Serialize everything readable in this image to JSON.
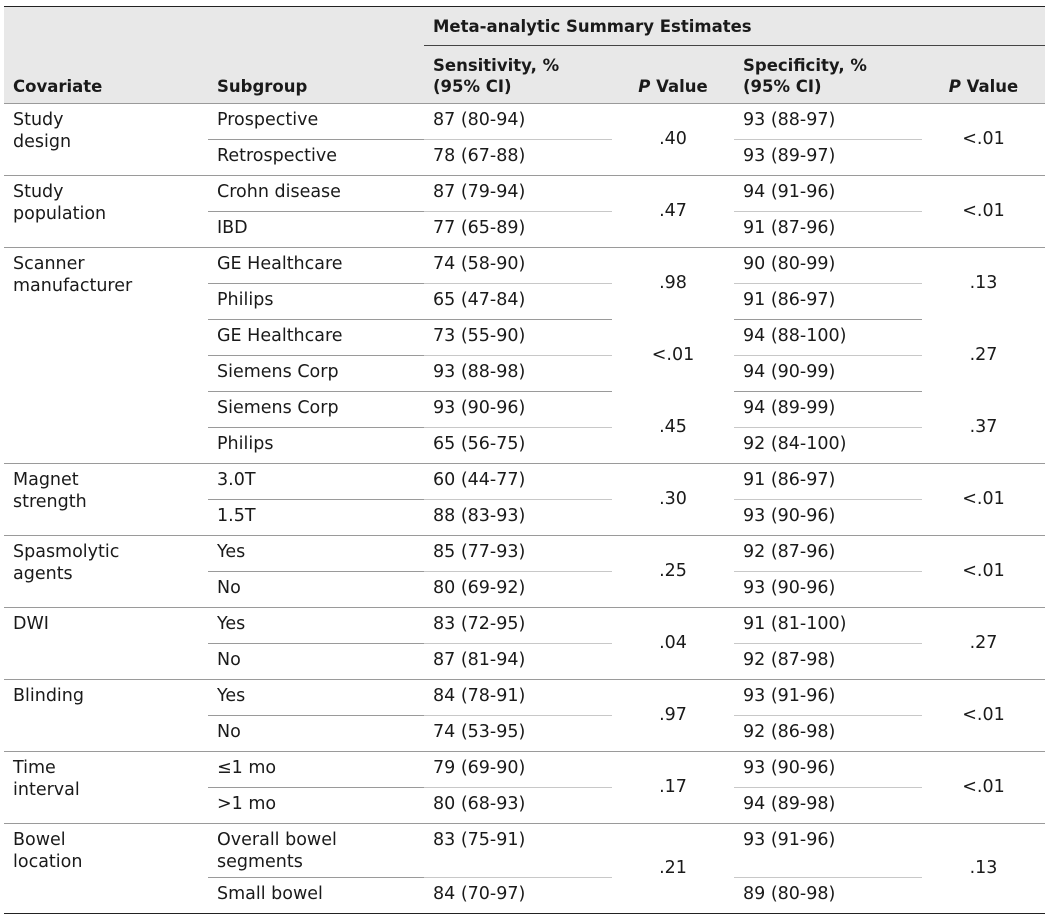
{
  "header": {
    "superheader": "Meta-analytic Summary Estimates",
    "col_covariate": "Covariate",
    "col_subgroup": "Subgroup",
    "col_sens": "Sensitivity, %",
    "col_sens_ci": "(95% CI)",
    "col_spec": "Specificity, %",
    "col_spec_ci": "(95% CI)",
    "p_italic": "P",
    "p_rest": " Value"
  },
  "groups": [
    {
      "covariate": "Study design",
      "pairs": [
        {
          "rows": [
            {
              "subgroup": "Prospective",
              "sens": "87 (80-94)",
              "spec": "93 (88-97)"
            },
            {
              "subgroup": "Retrospective",
              "sens": "78 (67-88)",
              "spec": "93 (89-97)"
            }
          ],
          "p_sens": ".40",
          "p_spec": "<.01"
        }
      ]
    },
    {
      "covariate": "Study population",
      "pairs": [
        {
          "rows": [
            {
              "subgroup": "Crohn disease",
              "sens": "87 (79-94)",
              "spec": "94 (91-96)"
            },
            {
              "subgroup": "IBD",
              "sens": "77 (65-89)",
              "spec": "91 (87-96)"
            }
          ],
          "p_sens": ".47",
          "p_spec": "<.01"
        }
      ]
    },
    {
      "covariate": "Scanner manufacturer",
      "pairs": [
        {
          "rows": [
            {
              "subgroup": "GE Healthcare",
              "sens": "74 (58-90)",
              "spec": "90 (80-99)"
            },
            {
              "subgroup": "Philips",
              "sens": "65 (47-84)",
              "spec": "91 (86-97)"
            }
          ],
          "p_sens": ".98",
          "p_spec": ".13"
        },
        {
          "rows": [
            {
              "subgroup": "GE Healthcare",
              "sens": "73 (55-90)",
              "spec": "94 (88-100)"
            },
            {
              "subgroup": "Siemens Corp",
              "sens": "93 (88-98)",
              "spec": "94 (90-99)"
            }
          ],
          "p_sens": "<.01",
          "p_spec": ".27"
        },
        {
          "rows": [
            {
              "subgroup": "Siemens Corp",
              "sens": "93 (90-96)",
              "spec": "94 (89-99)"
            },
            {
              "subgroup": "Philips",
              "sens": "65 (56-75)",
              "spec": "92 (84-100)"
            }
          ],
          "p_sens": ".45",
          "p_spec": ".37"
        }
      ]
    },
    {
      "covariate": "Magnet strength",
      "pairs": [
        {
          "rows": [
            {
              "subgroup": "3.0T",
              "sens": "60 (44-77)",
              "spec": "91 (86-97)"
            },
            {
              "subgroup": "1.5T",
              "sens": "88 (83-93)",
              "spec": "93 (90-96)"
            }
          ],
          "p_sens": ".30",
          "p_spec": "<.01"
        }
      ]
    },
    {
      "covariate": "Spasmolytic agents",
      "pairs": [
        {
          "rows": [
            {
              "subgroup": "Yes",
              "sens": "85 (77-93)",
              "spec": "92 (87-96)"
            },
            {
              "subgroup": "No",
              "sens": "80 (69-92)",
              "spec": "93 (90-96)"
            }
          ],
          "p_sens": ".25",
          "p_spec": "<.01"
        }
      ]
    },
    {
      "covariate": "DWI",
      "pairs": [
        {
          "rows": [
            {
              "subgroup": "Yes",
              "sens": "83 (72-95)",
              "spec": "91 (81-100)"
            },
            {
              "subgroup": "No",
              "sens": "87 (81-94)",
              "spec": "92 (87-98)"
            }
          ],
          "p_sens": ".04",
          "p_spec": ".27"
        }
      ]
    },
    {
      "covariate": "Blinding",
      "pairs": [
        {
          "rows": [
            {
              "subgroup": "Yes",
              "sens": "84 (78-91)",
              "spec": "93 (91-96)"
            },
            {
              "subgroup": "No",
              "sens": "74 (53-95)",
              "spec": "92 (86-98)"
            }
          ],
          "p_sens": ".97",
          "p_spec": "<.01"
        }
      ]
    },
    {
      "covariate": "Time interval",
      "pairs": [
        {
          "rows": [
            {
              "subgroup": "≤1 mo",
              "sens": "79 (69-90)",
              "spec": "93 (90-96)"
            },
            {
              "subgroup": ">1 mo",
              "sens": "80 (68-93)",
              "spec": "94 (89-98)"
            }
          ],
          "p_sens": ".17",
          "p_spec": "<.01"
        }
      ]
    },
    {
      "covariate": "Bowel location",
      "pairs": [
        {
          "rows": [
            {
              "subgroup": "Overall bowel segments",
              "sens": "83 (75-91)",
              "spec": "93 (91-96)"
            },
            {
              "subgroup": "Small bowel",
              "sens": "84 (70-97)",
              "spec": "89 (80-98)"
            }
          ],
          "p_sens": ".21",
          "p_spec": ".13"
        }
      ]
    }
  ]
}
